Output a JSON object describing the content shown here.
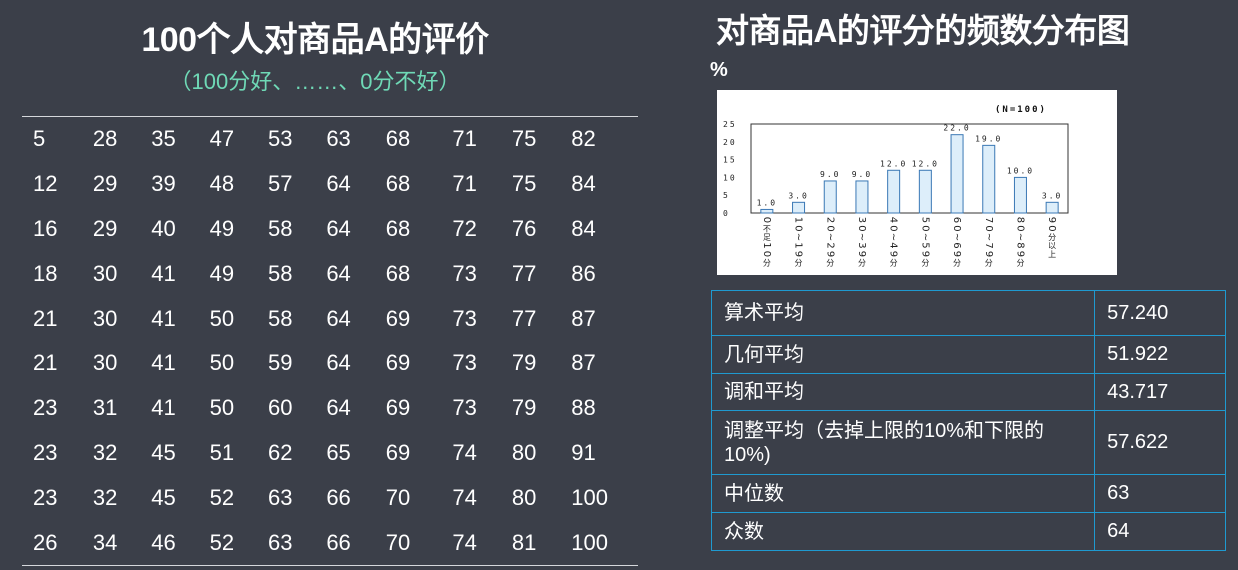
{
  "left": {
    "title": "100个人对商品A的评价",
    "subtitle": "（100分好、……、0分不好）",
    "rows": [
      [
        "5",
        "28",
        "35",
        "47",
        "53",
        "63",
        "68",
        "71",
        "75",
        "82"
      ],
      [
        "12",
        "29",
        "39",
        "48",
        "57",
        "64",
        "68",
        "71",
        "75",
        "84"
      ],
      [
        "16",
        "29",
        "40",
        "49",
        "58",
        "64",
        "68",
        "72",
        "76",
        "84"
      ],
      [
        "18",
        "30",
        "41",
        "49",
        "58",
        "64",
        "68",
        "73",
        "77",
        "86"
      ],
      [
        "21",
        "30",
        "41",
        "50",
        "58",
        "64",
        "69",
        "73",
        "77",
        "87"
      ],
      [
        "21",
        "30",
        "41",
        "50",
        "59",
        "64",
        "69",
        "73",
        "79",
        "87"
      ],
      [
        "23",
        "31",
        "41",
        "50",
        "60",
        "64",
        "69",
        "73",
        "79",
        "88"
      ],
      [
        "23",
        "32",
        "45",
        "51",
        "62",
        "65",
        "69",
        "74",
        "80",
        "91"
      ],
      [
        "23",
        "32",
        "45",
        "52",
        "63",
        "66",
        "70",
        "74",
        "80",
        "100"
      ],
      [
        "26",
        "34",
        "46",
        "52",
        "63",
        "66",
        "70",
        "74",
        "81",
        "100"
      ]
    ]
  },
  "right": {
    "title": "对商品A的评分的频数分布图",
    "y_unit": "%",
    "stats": [
      {
        "label": "算术平均",
        "value": "57.240"
      },
      {
        "label": "几何平均",
        "value": "51.922"
      },
      {
        "label": "调和平均",
        "value": "43.717"
      },
      {
        "label": "调整平均（去掉上限的10%和下限的10%)",
        "value": "57.622"
      },
      {
        "label": "中位数",
        "value": "63"
      },
      {
        "label": "众数",
        "value": "64"
      }
    ]
  },
  "chart_data": {
    "type": "bar",
    "annotation": "(N=100)",
    "categories": [
      "0不足10分",
      "10~19分",
      "20~29分",
      "30~39分",
      "40~49分",
      "50~59分",
      "60~69分",
      "70~79分",
      "80~89分",
      "90分以上"
    ],
    "x_tick_lines": [
      [
        "0",
        "不",
        "足",
        "1",
        "0",
        "分"
      ],
      [
        "1",
        "0",
        "~",
        "1",
        "9",
        "分"
      ],
      [
        "2",
        "0",
        "~",
        "2",
        "9",
        "分"
      ],
      [
        "3",
        "0",
        "~",
        "3",
        "9",
        "分"
      ],
      [
        "4",
        "0",
        "~",
        "4",
        "9",
        "分"
      ],
      [
        "5",
        "0",
        "~",
        "5",
        "9",
        "分"
      ],
      [
        "6",
        "0",
        "~",
        "6",
        "9",
        "分"
      ],
      [
        "7",
        "0",
        "~",
        "7",
        "9",
        "分"
      ],
      [
        "8",
        "0",
        "~",
        "8",
        "9",
        "分"
      ],
      [
        "9",
        "0",
        "分",
        "以",
        "上"
      ]
    ],
    "values": [
      1.0,
      3.0,
      9.0,
      9.0,
      12.0,
      12.0,
      22.0,
      19.0,
      10.0,
      3.0
    ],
    "value_labels": [
      "1.0",
      "3.0",
      "9.0",
      "9.0",
      "12.0",
      "12.0",
      "22.0",
      "19.0",
      "10.0",
      "3.0"
    ],
    "ylim": [
      0,
      25
    ],
    "yticks": [
      "0",
      "5",
      "10",
      "15",
      "20",
      "25"
    ],
    "bar_color": "#ddeefa",
    "bar_edge_color": "#3a78b5"
  }
}
